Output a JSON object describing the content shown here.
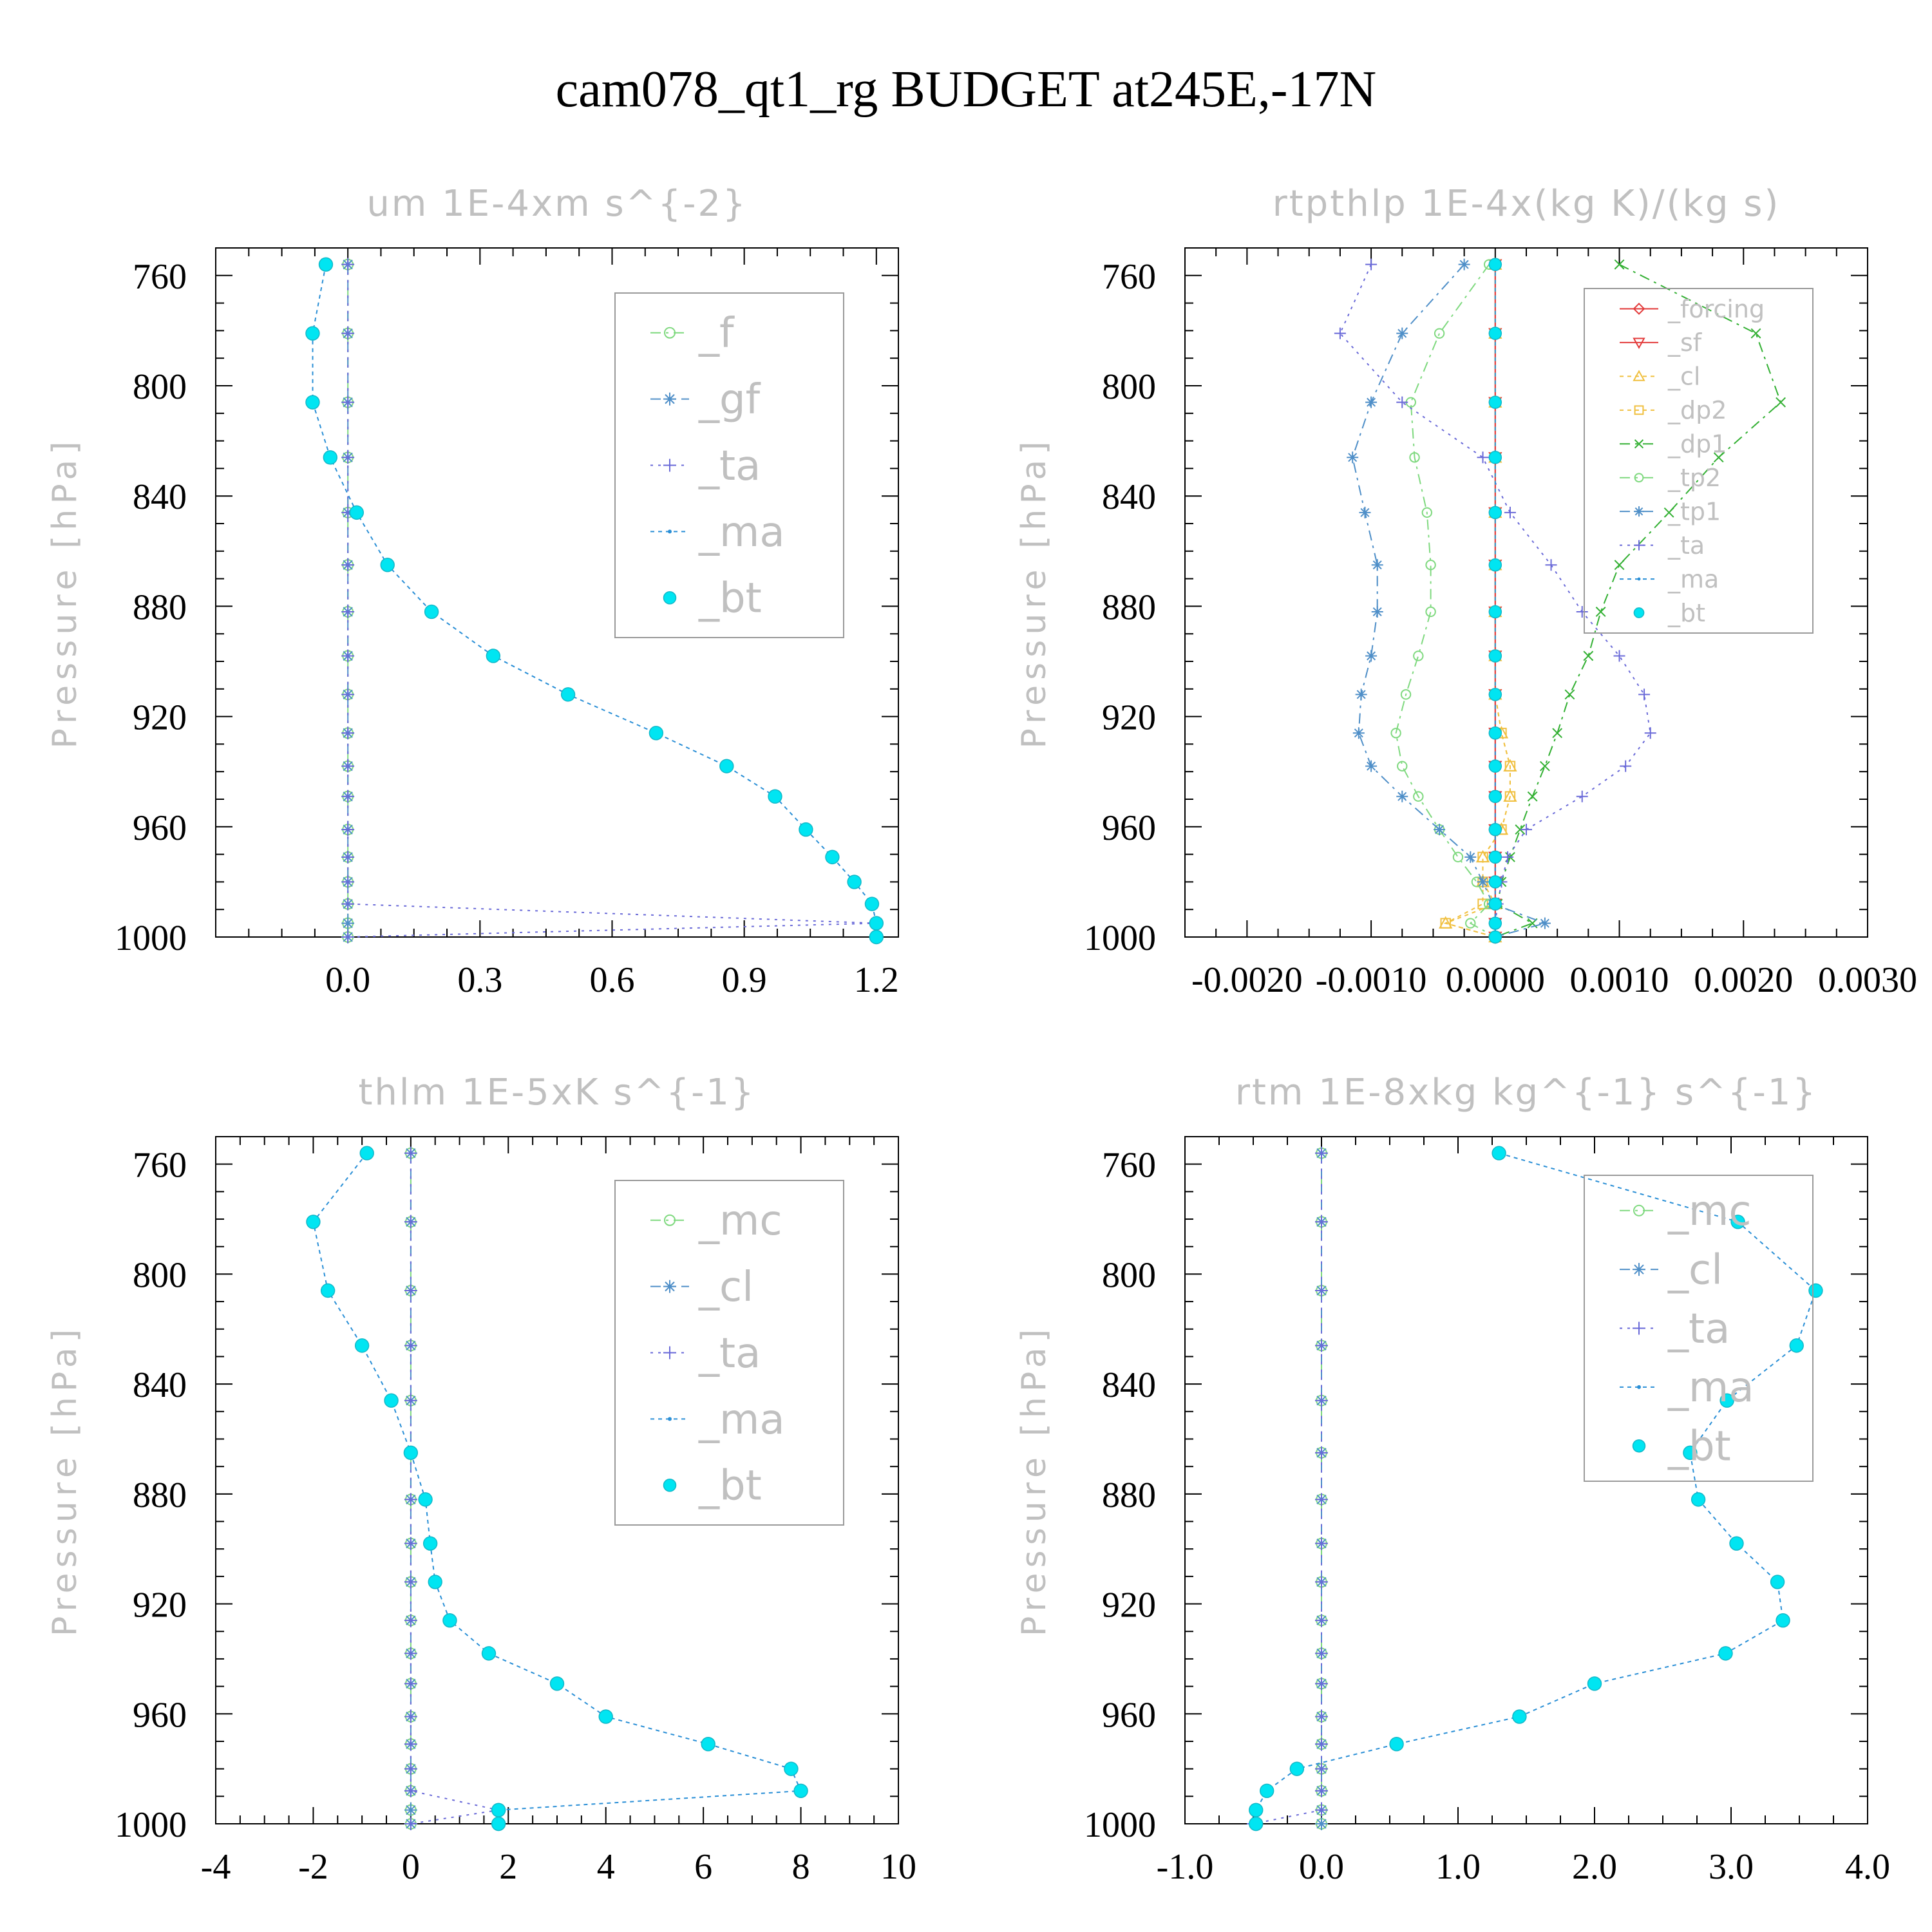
{
  "figure_title": "cam078_qt1_rg  BUDGET at245E,-17N",
  "colors": {
    "f": "#7fd97f",
    "gf": "#4f8fc8",
    "ta": "#6a6ad8",
    "ma": "#2a8fd6",
    "bt": "#00e5f2",
    "forcing": "#e33b3b",
    "sf": "#e33b3b",
    "cl_w": "#f0c040",
    "dp2": "#f0c040",
    "dp1": "#33b033",
    "tp2": "#7fd97f",
    "tp1": "#4f8fc8",
    "mc": "#7fd97f",
    "cl": "#4f8fc8"
  },
  "chart_data": [
    {
      "type": "line",
      "title": "um   1E-4xm s^{-2}",
      "ylabel": "Pressure [hPa]",
      "xlim": [
        -0.3,
        1.25
      ],
      "ylim": [
        1000,
        750
      ],
      "xticks": [
        0,
        0.3,
        0.6,
        0.9,
        1.2
      ],
      "xtick_labels": [
        "0.0",
        "0.3",
        "0.6",
        "0.9",
        "1.2"
      ],
      "yticks": [
        760,
        800,
        840,
        880,
        920,
        960,
        1000
      ],
      "ytick_labels": [
        "760",
        "800",
        "840",
        "880",
        "920",
        "960",
        "1000"
      ],
      "pressure": [
        756,
        781,
        806,
        826,
        846,
        865,
        882,
        898,
        912,
        926,
        938,
        949,
        961,
        971,
        980,
        988,
        995,
        1000
      ],
      "legend_position": "top-right",
      "series": [
        {
          "name": "_f",
          "key": "f",
          "marker": "circle",
          "dash": "16 8 4 8",
          "values": [
            0,
            0,
            0,
            0,
            0,
            0,
            0,
            0,
            0,
            0,
            0,
            0,
            0,
            0,
            0,
            0,
            0,
            0
          ]
        },
        {
          "name": "_gf",
          "key": "gf",
          "marker": "star",
          "dash": "16 8",
          "values": [
            0,
            0,
            0,
            0,
            0,
            0,
            0,
            0,
            0,
            0,
            0,
            0,
            0,
            0,
            0,
            0,
            0,
            0
          ]
        },
        {
          "name": "_ta",
          "key": "ta",
          "marker": "plus",
          "dash": "4 8",
          "values": [
            0,
            0,
            0,
            0,
            0,
            0,
            0,
            0,
            0,
            0,
            0,
            0,
            0,
            0,
            0,
            0,
            1.2,
            0
          ]
        },
        {
          "name": "_ma",
          "key": "ma",
          "marker": "dot",
          "dash": "6 6",
          "values": [
            -0.05,
            -0.08,
            -0.08,
            -0.04,
            0.02,
            0.09,
            0.19,
            0.33,
            0.5,
            0.7,
            0.86,
            0.97,
            1.04,
            1.1,
            1.15,
            1.19,
            1.2,
            1.2
          ]
        },
        {
          "name": "_bt",
          "key": "bt",
          "marker": "disc",
          "dash": "none",
          "values": [
            -0.05,
            -0.08,
            -0.08,
            -0.04,
            0.02,
            0.09,
            0.19,
            0.33,
            0.5,
            0.7,
            0.86,
            0.97,
            1.04,
            1.1,
            1.15,
            1.19,
            1.2,
            1.2
          ]
        }
      ]
    },
    {
      "type": "line",
      "title": "rtpthlp   1E-4x(kg K)/(kg s)",
      "ylabel": "Pressure [hPa]",
      "xlim": [
        -0.0025,
        0.003
      ],
      "ylim": [
        1000,
        750
      ],
      "xticks": [
        -0.002,
        -0.001,
        0,
        0.001,
        0.002,
        0.003
      ],
      "xtick_labels": [
        "-0.0020",
        "-0.0010",
        "0.0000",
        "0.0010",
        "0.0020",
        "0.0030"
      ],
      "yticks": [
        760,
        800,
        840,
        880,
        920,
        960,
        1000
      ],
      "ytick_labels": [
        "760",
        "800",
        "840",
        "880",
        "920",
        "960",
        "1000"
      ],
      "pressure": [
        756,
        781,
        806,
        826,
        846,
        865,
        882,
        898,
        912,
        926,
        938,
        949,
        961,
        971,
        980,
        988,
        995,
        1000
      ],
      "legend_position": "top-right",
      "series": [
        {
          "name": "_forcing",
          "key": "forcing",
          "marker": "diamond",
          "dash": "none",
          "values": [
            0,
            0,
            0,
            0,
            0,
            0,
            0,
            0,
            0,
            0,
            0,
            0,
            0,
            0,
            0,
            0,
            0,
            0
          ]
        },
        {
          "name": "_sf",
          "key": "sf",
          "marker": "tridown",
          "dash": "none",
          "values": [
            0,
            0,
            0,
            0,
            0,
            0,
            0,
            0,
            0,
            0,
            0,
            0,
            0,
            0,
            0,
            0,
            0,
            0
          ]
        },
        {
          "name": "_cl",
          "key": "cl_w",
          "marker": "triup",
          "dash": "6 6",
          "values": [
            0,
            0,
            0,
            0,
            0,
            0,
            0,
            0,
            0,
            5e-05,
            0.00012,
            0.00012,
            5e-05,
            -0.0001,
            -0.0001,
            0,
            -0.0004,
            0
          ]
        },
        {
          "name": "_dp2",
          "key": "dp2",
          "marker": "square",
          "dash": "6 6",
          "values": [
            0,
            0,
            0,
            0,
            0,
            0,
            0,
            0,
            0,
            5e-05,
            0.00012,
            0.00012,
            5e-05,
            -0.0001,
            -0.0001,
            -0.0001,
            -0.0004,
            0
          ]
        },
        {
          "name": "_dp1",
          "key": "dp1",
          "marker": "x",
          "dash": "16 8 4 8",
          "values": [
            0.001,
            0.0021,
            0.0023,
            0.0018,
            0.0014,
            0.001,
            0.00085,
            0.00075,
            0.0006,
            0.0005,
            0.0004,
            0.0003,
            0.0002,
            0.00012,
            5e-05,
            2e-05,
            0.0003,
            0
          ]
        },
        {
          "name": "_tp2",
          "key": "tp2",
          "marker": "circle",
          "dash": "16 8 4 8",
          "values": [
            -5e-05,
            -0.00045,
            -0.00068,
            -0.00065,
            -0.00055,
            -0.00052,
            -0.00052,
            -0.00062,
            -0.00072,
            -0.0008,
            -0.00075,
            -0.00062,
            -0.00045,
            -0.0003,
            -0.00015,
            -5e-05,
            -0.0002,
            0
          ]
        },
        {
          "name": "_tp1",
          "key": "tp1",
          "marker": "star",
          "dash": "16 8 4 8",
          "values": [
            -0.00025,
            -0.00075,
            -0.001,
            -0.00115,
            -0.00105,
            -0.00095,
            -0.00095,
            -0.001,
            -0.00108,
            -0.0011,
            -0.001,
            -0.00075,
            -0.00045,
            -0.0002,
            -0.0001,
            -2e-05,
            0.0004,
            0
          ]
        },
        {
          "name": "_ta",
          "key": "ta",
          "marker": "plus",
          "dash": "4 8",
          "values": [
            -0.001,
            -0.00125,
            -0.00075,
            -0.0001,
            0.00012,
            0.00045,
            0.0007,
            0.001,
            0.0012,
            0.00125,
            0.00105,
            0.0007,
            0.00025,
            0.0001,
            5e-05,
            2e-05,
            0,
            0
          ]
        },
        {
          "name": "_ma",
          "key": "ma",
          "marker": "dot",
          "dash": "6 6",
          "values": [
            0,
            0,
            0,
            0,
            0,
            0,
            0,
            0,
            0,
            0,
            0,
            0,
            0,
            0,
            0,
            0,
            0,
            0
          ]
        },
        {
          "name": "_bt",
          "key": "bt",
          "marker": "disc",
          "dash": "none",
          "values": [
            0,
            0,
            0,
            0,
            0,
            0,
            0,
            0,
            0,
            0,
            0,
            0,
            0,
            0,
            0,
            0,
            0,
            0
          ]
        }
      ]
    },
    {
      "type": "line",
      "title": "thlm   1E-5xK s^{-1}",
      "ylabel": "Pressure [hPa]",
      "xlim": [
        -4,
        10
      ],
      "ylim": [
        1000,
        750
      ],
      "xticks": [
        -4,
        -2,
        0,
        2,
        4,
        6,
        8,
        10
      ],
      "xtick_labels": [
        "-4",
        "-2",
        "0",
        "2",
        "4",
        "6",
        "8",
        "10"
      ],
      "yticks": [
        760,
        800,
        840,
        880,
        920,
        960,
        1000
      ],
      "ytick_labels": [
        "760",
        "800",
        "840",
        "880",
        "920",
        "960",
        "1000"
      ],
      "pressure": [
        756,
        781,
        806,
        826,
        846,
        865,
        882,
        898,
        912,
        926,
        938,
        949,
        961,
        971,
        980,
        988,
        995,
        1000
      ],
      "legend_position": "top-right",
      "series": [
        {
          "name": "_mc",
          "key": "mc",
          "marker": "circle",
          "dash": "16 8 4 8",
          "values": [
            0,
            0,
            0,
            0,
            0,
            0,
            0,
            0,
            0,
            0,
            0,
            0,
            0,
            0,
            0,
            0,
            0,
            0
          ]
        },
        {
          "name": "_cl",
          "key": "cl",
          "marker": "star",
          "dash": "16 8",
          "values": [
            0,
            0,
            0,
            0,
            0,
            0,
            0,
            0,
            0,
            0,
            0,
            0,
            0,
            0,
            0,
            0,
            0,
            0
          ]
        },
        {
          "name": "_ta",
          "key": "ta",
          "marker": "plus",
          "dash": "4 8",
          "values": [
            0,
            0,
            0,
            0,
            0,
            0,
            0,
            0,
            0,
            0,
            0,
            0,
            0,
            0,
            0,
            0,
            1.8,
            0
          ]
        },
        {
          "name": "_ma",
          "key": "ma",
          "marker": "dot",
          "dash": "6 6",
          "values": [
            -0.9,
            -2.0,
            -1.7,
            -1.0,
            -0.4,
            0,
            0.3,
            0.4,
            0.5,
            0.8,
            1.6,
            3.0,
            4.0,
            6.1,
            7.8,
            8.0,
            1.8,
            1.8
          ]
        },
        {
          "name": "_bt",
          "key": "bt",
          "marker": "disc",
          "dash": "none",
          "values": [
            -0.9,
            -2.0,
            -1.7,
            -1.0,
            -0.4,
            0,
            0.3,
            0.4,
            0.5,
            0.8,
            1.6,
            3.0,
            4.0,
            6.1,
            7.8,
            8.0,
            1.8,
            1.8
          ]
        }
      ]
    },
    {
      "type": "line",
      "title": "rtm   1E-8xkg kg^{-1} s^{-1}",
      "ylabel": "Pressure [hPa]",
      "xlim": [
        -1,
        4
      ],
      "ylim": [
        1000,
        750
      ],
      "xticks": [
        -1,
        0,
        1,
        2,
        3,
        4
      ],
      "xtick_labels": [
        "-1.0",
        "0.0",
        "1.0",
        "2.0",
        "3.0",
        "4.0"
      ],
      "yticks": [
        760,
        800,
        840,
        880,
        920,
        960,
        1000
      ],
      "ytick_labels": [
        "760",
        "800",
        "840",
        "880",
        "920",
        "960",
        "1000"
      ],
      "pressure": [
        756,
        781,
        806,
        826,
        846,
        865,
        882,
        898,
        912,
        926,
        938,
        949,
        961,
        971,
        980,
        988,
        995,
        1000
      ],
      "legend_position": "top-right",
      "series": [
        {
          "name": "_mc",
          "key": "mc",
          "marker": "circle",
          "dash": "16 8 4 8",
          "values": [
            0,
            0,
            0,
            0,
            0,
            0,
            0,
            0,
            0,
            0,
            0,
            0,
            0,
            0,
            0,
            0,
            0,
            0
          ]
        },
        {
          "name": "_cl",
          "key": "cl",
          "marker": "star",
          "dash": "16 8",
          "values": [
            0,
            0,
            0,
            0,
            0,
            0,
            0,
            0,
            0,
            0,
            0,
            0,
            0,
            0,
            0,
            0,
            0,
            0
          ]
        },
        {
          "name": "_ta",
          "key": "ta",
          "marker": "plus",
          "dash": "4 8",
          "values": [
            0,
            0,
            0,
            0,
            0,
            0,
            0,
            0,
            0,
            0,
            0,
            0,
            0,
            0,
            0,
            0,
            0,
            -0.5
          ]
        },
        {
          "name": "_ma",
          "key": "ma",
          "marker": "dot",
          "dash": "6 6",
          "values": [
            1.3,
            3.05,
            3.62,
            3.48,
            2.97,
            2.7,
            2.76,
            3.04,
            3.34,
            3.38,
            2.96,
            2.0,
            1.45,
            0.55,
            -0.18,
            -0.4,
            -0.48,
            -0.48
          ]
        },
        {
          "name": "_bt",
          "key": "bt",
          "marker": "disc",
          "dash": "none",
          "values": [
            1.3,
            3.05,
            3.62,
            3.48,
            2.97,
            2.7,
            2.76,
            3.04,
            3.34,
            3.38,
            2.96,
            2.0,
            1.45,
            0.55,
            -0.18,
            -0.4,
            -0.48,
            -0.48
          ]
        }
      ]
    }
  ]
}
